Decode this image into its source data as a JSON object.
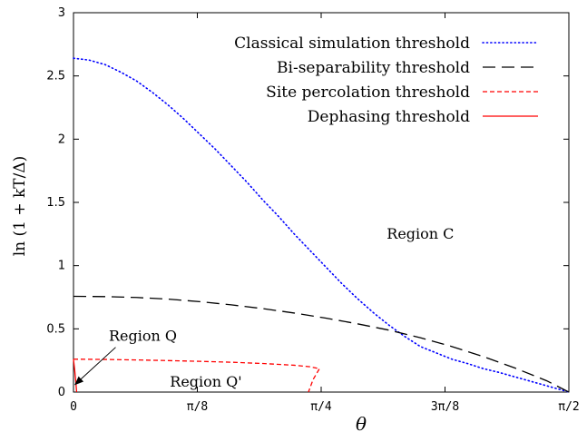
{
  "chart_data": {
    "type": "line",
    "title": "",
    "xlabel": "θ",
    "ylabel": "ln (1 + kT/Δ)",
    "xlim": [
      0,
      1.5708
    ],
    "ylim": [
      0,
      3
    ],
    "xticks": [
      {
        "value": 0,
        "label": "0"
      },
      {
        "value": 0.3927,
        "label": "π/8"
      },
      {
        "value": 0.7854,
        "label": "π/4"
      },
      {
        "value": 1.1781,
        "label": "3π/8"
      },
      {
        "value": 1.5708,
        "label": "π/2"
      }
    ],
    "yticks": [
      {
        "value": 0,
        "label": "0"
      },
      {
        "value": 0.5,
        "label": "0.5"
      },
      {
        "value": 1,
        "label": "1"
      },
      {
        "value": 1.5,
        "label": "1.5"
      },
      {
        "value": 2,
        "label": "2"
      },
      {
        "value": 2.5,
        "label": "2.5"
      },
      {
        "value": 3,
        "label": "3"
      }
    ],
    "grid": false,
    "legend_position": "top-right",
    "series": [
      {
        "name": "Classical simulation threshold",
        "color": "#0000ff",
        "style": "dotted",
        "x": [
          0,
          0.05,
          0.1,
          0.15,
          0.2,
          0.25,
          0.3,
          0.35,
          0.4,
          0.45,
          0.5,
          0.55,
          0.6,
          0.65,
          0.7,
          0.75,
          0.8,
          0.85,
          0.9,
          0.95,
          1.0,
          1.05,
          1.1,
          1.15,
          1.2,
          1.25,
          1.3,
          1.35,
          1.4,
          1.45,
          1.5,
          1.55,
          1.5708
        ],
        "y": [
          2.64,
          2.625,
          2.59,
          2.53,
          2.46,
          2.37,
          2.27,
          2.16,
          2.04,
          1.92,
          1.79,
          1.66,
          1.52,
          1.39,
          1.25,
          1.12,
          0.99,
          0.86,
          0.74,
          0.63,
          0.53,
          0.44,
          0.36,
          0.31,
          0.26,
          0.225,
          0.185,
          0.155,
          0.12,
          0.085,
          0.05,
          0.015,
          0
        ]
      },
      {
        "name": "Bi-separability threshold",
        "color": "#000000",
        "style": "dashed",
        "x": [
          0,
          0.1,
          0.2,
          0.3,
          0.4,
          0.5,
          0.6,
          0.7,
          0.8,
          0.9,
          1.0,
          1.1,
          1.2,
          1.3,
          1.4,
          1.5,
          1.5708
        ],
        "y": [
          0.757,
          0.755,
          0.748,
          0.735,
          0.715,
          0.69,
          0.66,
          0.625,
          0.585,
          0.54,
          0.49,
          0.43,
          0.36,
          0.28,
          0.19,
          0.09,
          0
        ]
      },
      {
        "name": "Site percolation threshold",
        "color": "#ff0000",
        "style": "dashed",
        "x": [
          0,
          0.1,
          0.2,
          0.3,
          0.4,
          0.5,
          0.6,
          0.7,
          0.75,
          0.78,
          0.76,
          0.745
        ],
        "y": [
          0.26,
          0.258,
          0.254,
          0.249,
          0.243,
          0.236,
          0.226,
          0.212,
          0.2,
          0.185,
          0.1,
          0
        ]
      },
      {
        "name": "Dephasing threshold",
        "color": "#ff0000",
        "style": "solid",
        "x": [
          0,
          0.004,
          0.007,
          0.01
        ],
        "y": [
          0.26,
          0.17,
          0.09,
          0
        ]
      }
    ],
    "annotations": [
      {
        "text": "Region C",
        "x": 1.1,
        "y": 1.25
      },
      {
        "text": "Region Q",
        "x": 0.22,
        "y": 0.44,
        "arrow_to": {
          "x": 0.005,
          "y": 0.06
        }
      },
      {
        "text": "Region Q'",
        "x": 0.42,
        "y": 0.08
      }
    ]
  }
}
